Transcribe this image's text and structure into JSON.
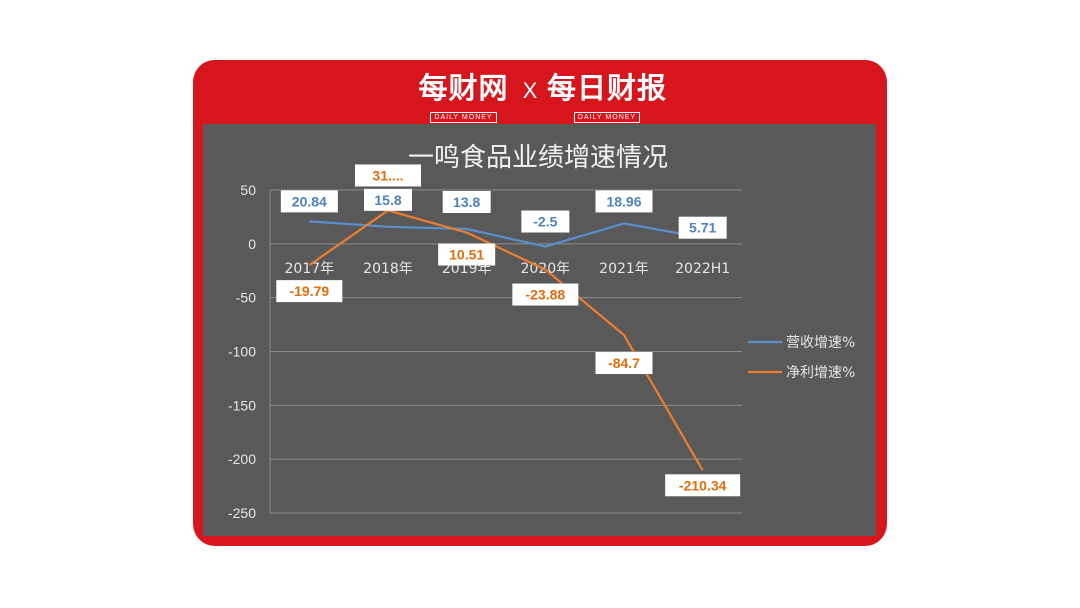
{
  "header": {
    "logo_left": "每财网",
    "logo_left_sub": "DAILY MONEY",
    "cross": "X",
    "logo_right": "每日财报",
    "logo_right_sub": "DAILY MONEY"
  },
  "colors": {
    "frame": "#d7151c",
    "panel": "#595959",
    "revenue_line": "#5b8fcc",
    "profit_line": "#ed7d31"
  },
  "chart_data": {
    "type": "line",
    "title": "一鸣食品业绩增速情况",
    "categories": [
      "2017年",
      "2018年",
      "2019年",
      "2020年",
      "2021年",
      "2022H1"
    ],
    "ylim": [
      -250,
      50
    ],
    "yticks": [
      50,
      0,
      -50,
      -100,
      -150,
      -200,
      -250
    ],
    "grid": true,
    "legend_position": "right",
    "series": [
      {
        "name": "营收增速%",
        "values": [
          20.84,
          15.8,
          13.8,
          -2.5,
          18.96,
          5.71
        ],
        "labels": [
          "20.84",
          "15.8",
          "13.8",
          "-2.5",
          "18.96",
          "5.71"
        ]
      },
      {
        "name": "净利增速%",
        "values": [
          -19.79,
          31,
          10.51,
          -23.88,
          -84.7,
          -210.34
        ],
        "labels": [
          "-19.79",
          "31....",
          "10.51",
          "-23.88",
          "-84.7",
          "-210.34"
        ]
      }
    ]
  }
}
